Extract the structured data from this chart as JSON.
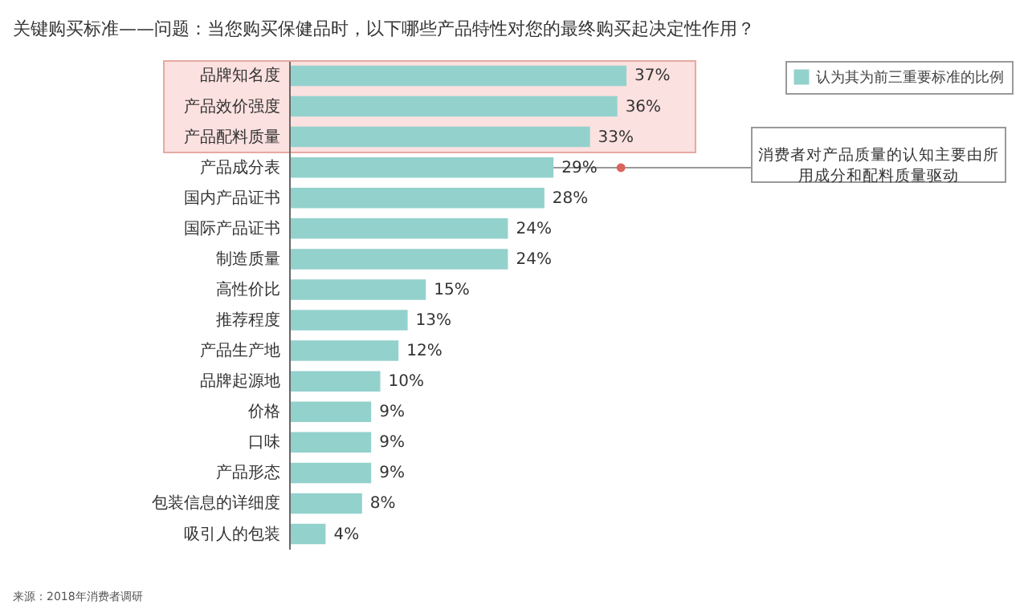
{
  "chart_data": {
    "type": "bar",
    "orientation": "horizontal",
    "title": "关键购买标准——问题：当您购买保健品时，以下哪些产品特性对您的最终购买起决定性作用？",
    "categories": [
      "品牌知名度",
      "产品效价强度",
      "产品配料质量",
      "产品成分表",
      "国内产品证书",
      "国际产品证书",
      "制造质量",
      "高性价比",
      "推荐程度",
      "产品生产地",
      "品牌起源地",
      "价格",
      "口味",
      "产品形态",
      "包装信息的详细度",
      "吸引人的包装"
    ],
    "series": [
      {
        "name": "认为其为前三重要标准的比例",
        "color": "#93d1cd",
        "values": [
          37,
          36,
          33,
          29,
          28,
          24,
          24,
          15,
          13,
          12,
          10,
          9,
          9,
          9,
          8,
          4
        ],
        "value_labels": [
          "37%",
          "36%",
          "33%",
          "29%",
          "28%",
          "24%",
          "24%",
          "15%",
          "13%",
          "12%",
          "10%",
          "9%",
          "9%",
          "9%",
          "8%",
          "4%"
        ]
      }
    ],
    "bands": [
      {
        "axis": "y",
        "from": "品牌知名度",
        "to": "产品配料质量",
        "color": "#fbe1df"
      }
    ],
    "annotations": [
      {
        "text": "消费者对产品质量的认知主要由所用成分和配料质量驱动",
        "x": 29,
        "y": "产品成分表"
      },
      "来源：2018年消费者调研"
    ],
    "legend": "top right"
  }
}
